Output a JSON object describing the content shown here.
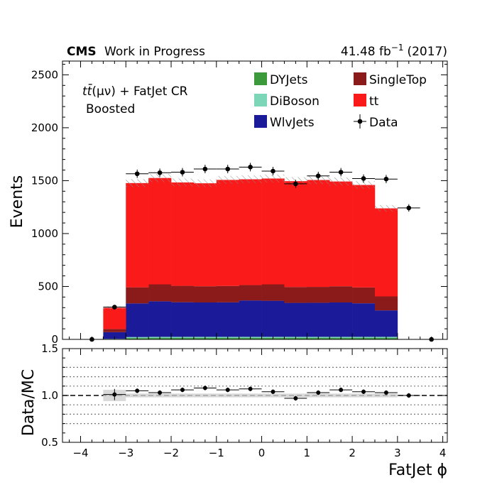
{
  "header": {
    "experiment": "CMS",
    "status": "Work in Progress",
    "lumi_value": "41.48 fb",
    "lumi_exp": "−1",
    "lumi_period": "(2017)"
  },
  "annotation": {
    "region_tt": "tt̄",
    "region_rest": "(μν) + FatJet CR",
    "line2": "Boosted"
  },
  "chart_data": [
    {
      "type": "bar",
      "subtype": "stacked-histogram",
      "xlabel": "FatJet ϕ",
      "ylabel": "Events",
      "xlim": [
        -4.4,
        4.1
      ],
      "ylim": [
        0,
        2630
      ],
      "x_ticks": [
        -4,
        -3,
        -2,
        -1,
        0,
        1,
        2,
        3,
        4
      ],
      "y_ticks": [
        0,
        500,
        1000,
        1500,
        2000,
        2500
      ],
      "x_tick_labels": [
        "−4",
        "−3",
        "−2",
        "−1",
        "0",
        "1",
        "2",
        "3",
        "4"
      ],
      "y_tick_labels": [
        "0",
        "500",
        "1000",
        "1500",
        "2000",
        "2500"
      ],
      "bin_edges": [
        -3.5,
        -3.0,
        -2.5,
        -2.0,
        -1.5,
        -1.0,
        -0.5,
        0.0,
        0.5,
        1.0,
        1.5,
        2.0,
        2.5,
        3.0
      ],
      "legend_position": "top-right",
      "series": [
        {
          "name": "DYJets",
          "color": "#3c9a3c",
          "values": [
            3,
            12,
            13,
            13,
            13,
            13,
            13,
            13,
            13,
            13,
            13,
            13,
            13
          ]
        },
        {
          "name": "DiBoson",
          "color": "#7bd6b8",
          "values": [
            3,
            10,
            11,
            11,
            11,
            11,
            11,
            11,
            11,
            11,
            11,
            11,
            11
          ]
        },
        {
          "name": "WlvJets",
          "color": "#1b1b9a",
          "values": [
            62,
            318,
            336,
            327,
            325,
            326,
            344,
            341,
            321,
            322,
            325,
            317,
            250
          ]
        },
        {
          "name": "SingleTop",
          "color": "#8b1a1a",
          "values": [
            30,
            152,
            160,
            155,
            153,
            155,
            145,
            155,
            150,
            150,
            153,
            150,
            132
          ]
        },
        {
          "name": "tt",
          "color": "#fb1a1a",
          "values": [
            200,
            985,
            1005,
            977,
            973,
            1002,
            1000,
            1000,
            1000,
            1010,
            990,
            968,
            832
          ]
        }
      ],
      "data": {
        "name": "Data",
        "x": [
          -3.75,
          -3.25,
          -2.75,
          -2.25,
          -1.75,
          -1.25,
          -0.75,
          -0.25,
          0.25,
          0.75,
          1.25,
          1.75,
          2.25,
          2.75,
          3.25,
          3.75
        ],
        "y": [
          0,
          305,
          1565,
          1575,
          1580,
          1610,
          1610,
          1628,
          1590,
          1470,
          1545,
          1580,
          1520,
          1515,
          1242,
          0
        ]
      }
    },
    {
      "type": "scatter",
      "subtype": "ratio",
      "ylabel": "Data/MC",
      "xlim": [
        -4.4,
        4.1
      ],
      "ylim": [
        0.5,
        1.5
      ],
      "y_ticks": [
        0.5,
        1.0,
        1.5
      ],
      "y_tick_labels": [
        "0.5",
        "1.0",
        "1.5"
      ],
      "gridlines": [
        0.7,
        0.8,
        0.9,
        1.1,
        1.2,
        1.3
      ],
      "reference_line": 1.0,
      "x": [
        -3.25,
        -2.75,
        -2.25,
        -1.75,
        -1.25,
        -0.75,
        -0.25,
        0.25,
        0.75,
        1.25,
        1.75,
        2.25,
        2.75,
        3.25
      ],
      "y": [
        1.01,
        1.05,
        1.03,
        1.06,
        1.08,
        1.06,
        1.07,
        1.04,
        0.97,
        1.03,
        1.06,
        1.04,
        1.03,
        1.0
      ]
    }
  ]
}
